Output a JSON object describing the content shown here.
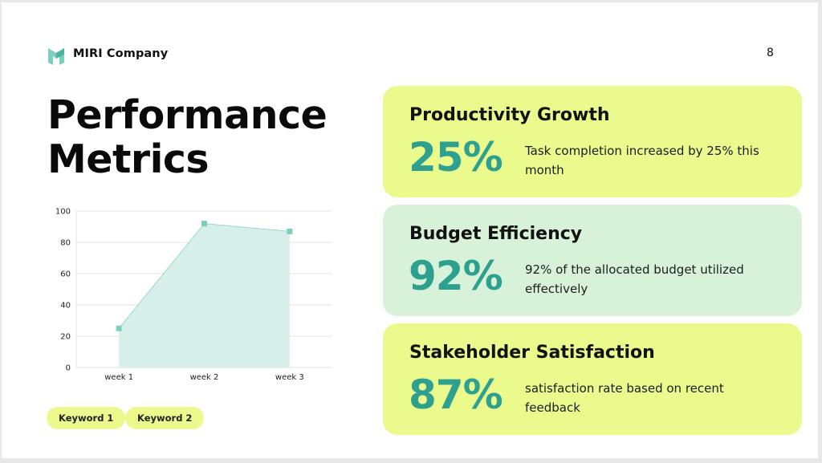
{
  "header": {
    "company": "MIRI Company",
    "page_number": "8"
  },
  "title": {
    "line1": "Performance",
    "line2": "Metrics"
  },
  "keywords": [
    "Keyword 1",
    "Keyword 2"
  ],
  "metrics": [
    {
      "title": "Productivity Growth",
      "value": "25%",
      "description": "Task completion increased by 25% this month"
    },
    {
      "title": "Budget Efficiency",
      "value": "92%",
      "description": "92% of the allocated budget utilized effectively"
    },
    {
      "title": "Stakeholder Satisfaction",
      "value": "87%",
      "description": "satisfaction rate based on recent feedback"
    }
  ],
  "colors": {
    "accent": "#2da08f",
    "card_yellow": "#ebfa8c",
    "card_mint": "#d8f2d9",
    "chart_fill": "#d6efea",
    "chart_line": "#9ad8cc",
    "chart_marker": "#7ccfbf"
  },
  "chart_data": {
    "type": "area",
    "categories": [
      "week 1",
      "week 2",
      "week 3"
    ],
    "values": [
      25,
      92,
      87
    ],
    "yticks": [
      0,
      20,
      40,
      60,
      80,
      100
    ],
    "ylim": [
      0,
      100
    ],
    "title": "",
    "xlabel": "",
    "ylabel": "",
    "grid": true
  }
}
